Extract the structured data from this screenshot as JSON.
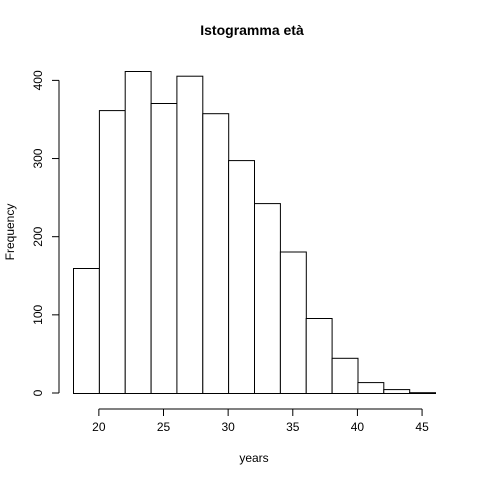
{
  "chart_data": {
    "type": "histogram",
    "title": "Istogramma età",
    "xlabel": "years",
    "ylabel": "Frequency",
    "bins": [
      {
        "start": 18,
        "end": 20,
        "count": 160
      },
      {
        "start": 20,
        "end": 22,
        "count": 362
      },
      {
        "start": 22,
        "end": 24,
        "count": 412
      },
      {
        "start": 24,
        "end": 26,
        "count": 371
      },
      {
        "start": 26,
        "end": 28,
        "count": 406
      },
      {
        "start": 28,
        "end": 30,
        "count": 358
      },
      {
        "start": 30,
        "end": 32,
        "count": 298
      },
      {
        "start": 32,
        "end": 34,
        "count": 243
      },
      {
        "start": 34,
        "end": 36,
        "count": 181
      },
      {
        "start": 36,
        "end": 38,
        "count": 96
      },
      {
        "start": 38,
        "end": 40,
        "count": 45
      },
      {
        "start": 40,
        "end": 42,
        "count": 14
      },
      {
        "start": 42,
        "end": 44,
        "count": 5
      },
      {
        "start": 44,
        "end": 46,
        "count": 1
      }
    ],
    "xticks": [
      20,
      25,
      30,
      35,
      40,
      45
    ],
    "yticks": [
      0,
      100,
      200,
      300,
      400
    ],
    "xlim": [
      18,
      46
    ],
    "ylim": [
      0,
      412
    ],
    "bar_fill": "#ffffff",
    "bar_stroke": "#000000",
    "grid": false,
    "legend": false
  }
}
